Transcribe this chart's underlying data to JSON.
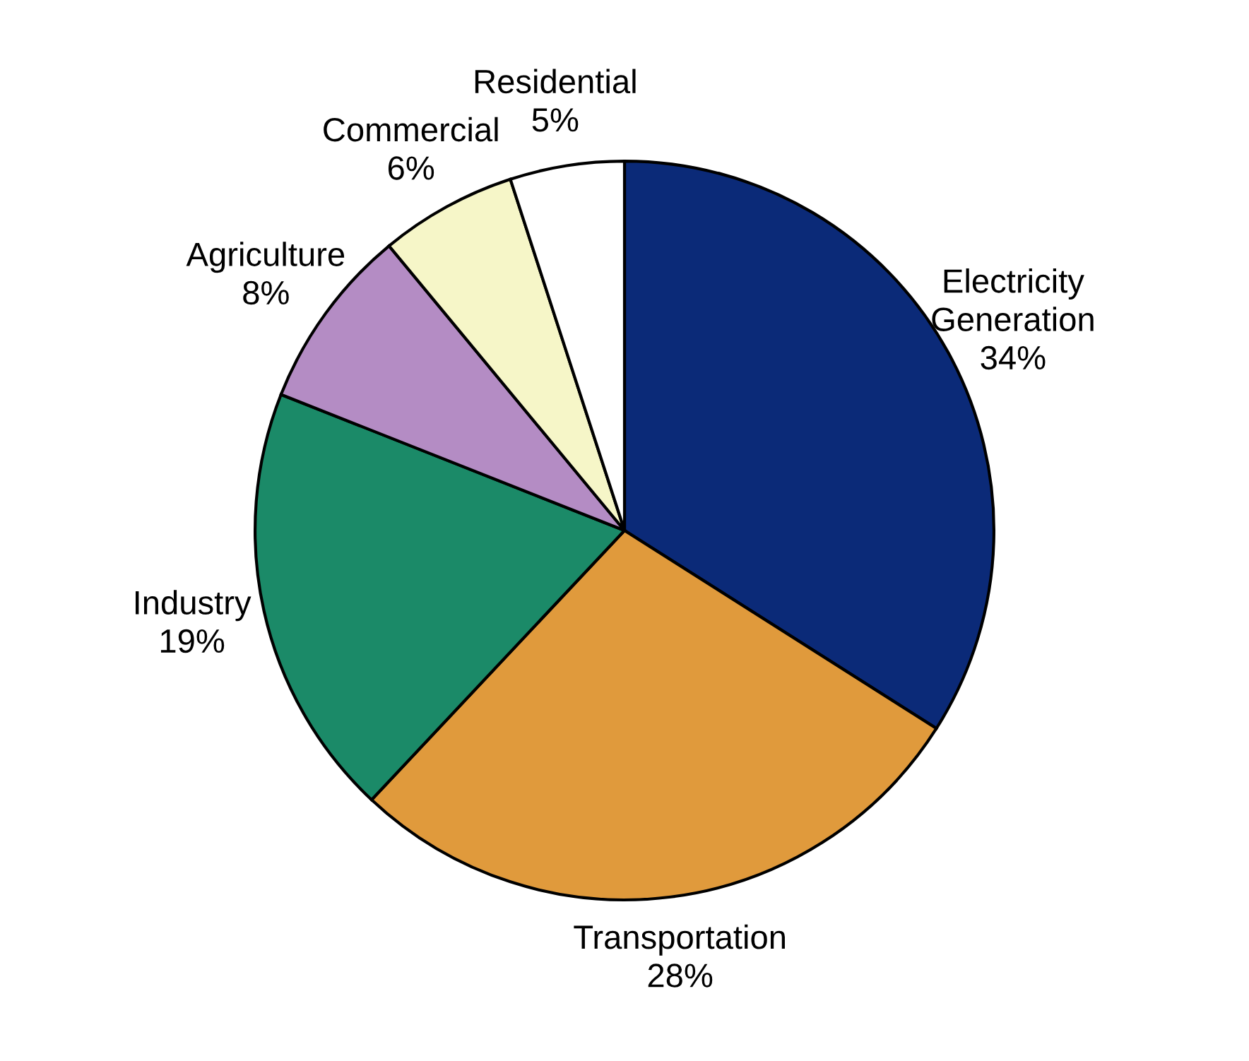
{
  "chart_data": {
    "type": "pie",
    "categories": [
      "Electricity\nGeneration",
      "Transportation",
      "Industry",
      "Agriculture",
      "Commercial",
      "Residential"
    ],
    "values": [
      34,
      28,
      19,
      8,
      6,
      5
    ],
    "colors": [
      "#0b2a78",
      "#e09a3c",
      "#1b8a68",
      "#b48cc4",
      "#f6f6c8",
      "#ffffff"
    ],
    "value_labels": [
      "34%",
      "28%",
      "19%",
      "8%",
      "6%",
      "5%"
    ]
  }
}
